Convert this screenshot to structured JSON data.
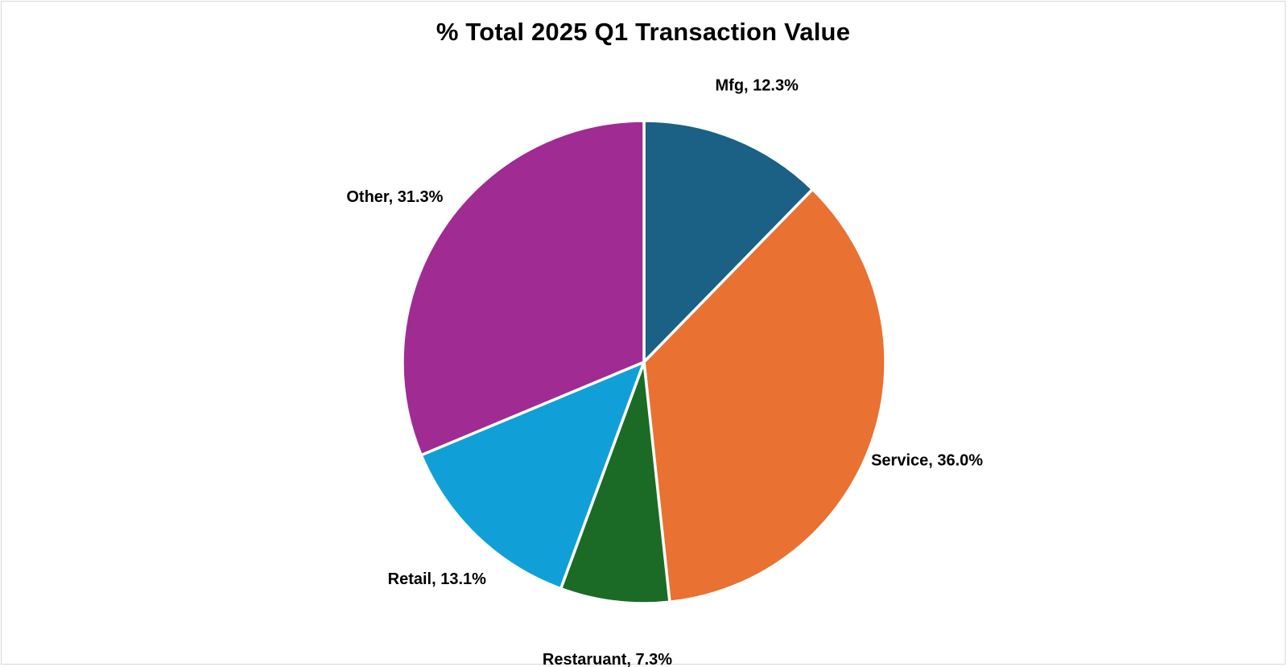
{
  "chart_data": {
    "type": "pie",
    "title": "% Total 2025 Q1 Transaction Value",
    "start_angle_deg": 0,
    "direction": "clockwise",
    "slices": [
      {
        "name": "Mfg",
        "value": 12.3,
        "label": "Mfg, 12.3%",
        "color": "#1a6185"
      },
      {
        "name": "Service",
        "value": 36.0,
        "label": "Service, 36.0%",
        "color": "#e97132"
      },
      {
        "name": "Restaruant",
        "value": 7.3,
        "label": "Restaruant, 7.3%",
        "color": "#1b6b27"
      },
      {
        "name": "Retail",
        "value": 13.1,
        "label": "Retail, 13.1%",
        "color": "#10a0d7"
      },
      {
        "name": "Other",
        "value": 31.3,
        "label": "Other, 31.3%",
        "color": "#a02b93"
      }
    ],
    "legend": "none",
    "data_labels": "outside"
  }
}
